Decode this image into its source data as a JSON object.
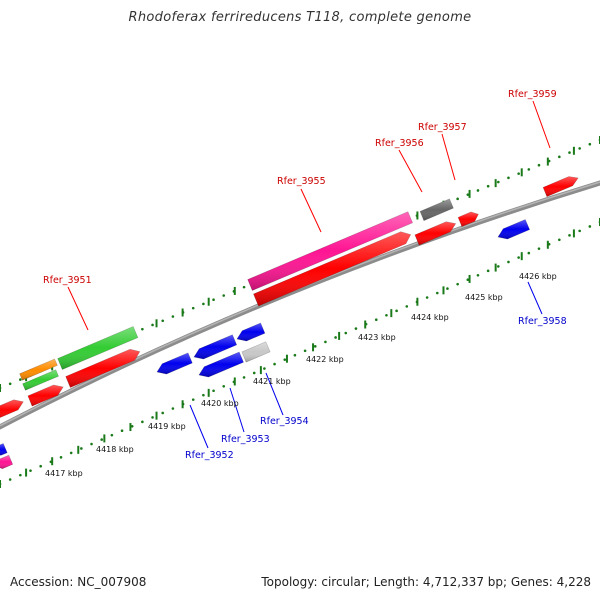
{
  "title": "Rhodoferax ferrireducens T118, complete genome",
  "footer": {
    "accession": "Accession: NC_007908",
    "summary": "Topology: circular; Length: 4,712,337 bp; Genes: 4,228"
  },
  "colors": {
    "backbone": "#8c8c8c",
    "red": "#ff0000",
    "pink": "#ff1493",
    "green": "#33cc33",
    "orange": "#ff8c00",
    "blue": "#0000ee",
    "dark_gray": "#666666",
    "light_gray": "#c8c8c8",
    "tick": "#1a7a1a",
    "label_top": "#cc0000",
    "label_bottom": "#0000cc"
  },
  "kbp_labels": [
    "4417 kbp",
    "4418 kbp",
    "4419 kbp",
    "4420 kbp",
    "4421 kbp",
    "4422 kbp",
    "4423 kbp",
    "4424 kbp",
    "4425 kbp",
    "4426 kbp"
  ],
  "gene_labels_top": [
    "Rfer_3951",
    "Rfer_3955",
    "Rfer_3956",
    "Rfer_3957",
    "Rfer_3959"
  ],
  "gene_labels_bottom": [
    "Rfer_3952",
    "Rfer_3953",
    "Rfer_3954",
    "Rfer_3958"
  ]
}
